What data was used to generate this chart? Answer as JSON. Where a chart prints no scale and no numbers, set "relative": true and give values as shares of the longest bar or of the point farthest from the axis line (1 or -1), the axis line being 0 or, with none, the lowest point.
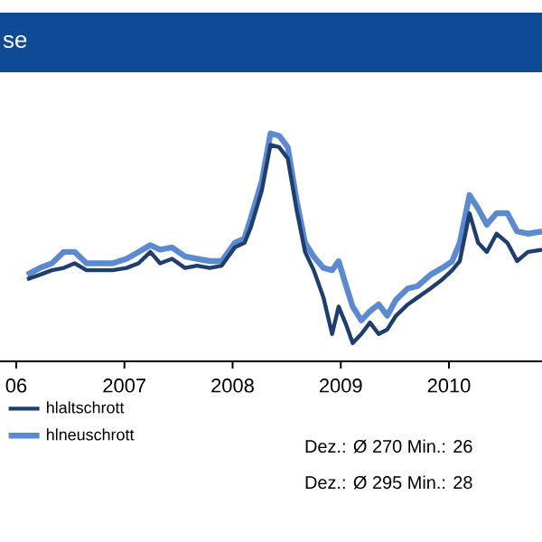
{
  "chart_data": {
    "type": "line",
    "title": "se",
    "relative": true,
    "xlim": [
      2005.85,
      2010.86
    ],
    "xticks": [
      {
        "value": 2006,
        "label": "06"
      },
      2007,
      2008,
      2009,
      2010
    ],
    "legend": "bottom left",
    "line_style": "solid",
    "marker": "none",
    "series": [
      {
        "name": "hlneuschrott",
        "color": "#5b8ad0",
        "x": [
          2006.1,
          2006.22,
          2006.33,
          2006.44,
          2006.54,
          2006.65,
          2006.76,
          2006.89,
          2007.02,
          2007.13,
          2007.24,
          2007.33,
          2007.44,
          2007.56,
          2007.67,
          2007.79,
          2007.9,
          2008.02,
          2008.11,
          2008.17,
          2008.27,
          2008.35,
          2008.43,
          2008.51,
          2008.59,
          2008.67,
          2008.75,
          2008.84,
          2008.92,
          2008.98,
          2009.05,
          2009.11,
          2009.19,
          2009.27,
          2009.35,
          2009.43,
          2009.51,
          2009.62,
          2009.71,
          2009.83,
          2009.94,
          2010.03,
          2010.1,
          2010.19,
          2010.27,
          2010.35,
          2010.44,
          2010.54,
          2010.63,
          2010.73,
          2010.86
        ],
        "values": [
          0.38,
          0.41,
          0.43,
          0.48,
          0.48,
          0.43,
          0.43,
          0.43,
          0.45,
          0.48,
          0.51,
          0.49,
          0.5,
          0.46,
          0.45,
          0.44,
          0.44,
          0.52,
          0.54,
          0.63,
          0.79,
          1.0,
          0.99,
          0.94,
          0.71,
          0.52,
          0.46,
          0.41,
          0.4,
          0.44,
          0.33,
          0.24,
          0.18,
          0.22,
          0.25,
          0.2,
          0.27,
          0.32,
          0.33,
          0.38,
          0.41,
          0.44,
          0.52,
          0.73,
          0.67,
          0.6,
          0.65,
          0.65,
          0.57,
          0.56,
          0.57
        ]
      },
      {
        "name": "hlaltschrott",
        "color": "#1f3d6e",
        "x": [
          2006.1,
          2006.22,
          2006.33,
          2006.44,
          2006.54,
          2006.65,
          2006.76,
          2006.89,
          2007.02,
          2007.13,
          2007.24,
          2007.33,
          2007.44,
          2007.56,
          2007.67,
          2007.79,
          2007.9,
          2008.02,
          2008.11,
          2008.17,
          2008.27,
          2008.35,
          2008.43,
          2008.51,
          2008.59,
          2008.67,
          2008.75,
          2008.84,
          2008.92,
          2008.98,
          2009.05,
          2009.11,
          2009.19,
          2009.27,
          2009.35,
          2009.43,
          2009.51,
          2009.62,
          2009.71,
          2009.83,
          2009.94,
          2010.03,
          2010.1,
          2010.19,
          2010.27,
          2010.35,
          2010.44,
          2010.54,
          2010.63,
          2010.73,
          2010.86
        ],
        "values": [
          0.36,
          0.38,
          0.4,
          0.41,
          0.43,
          0.4,
          0.4,
          0.4,
          0.41,
          0.43,
          0.48,
          0.43,
          0.45,
          0.41,
          0.42,
          0.41,
          0.42,
          0.5,
          0.52,
          0.59,
          0.75,
          0.95,
          0.94,
          0.89,
          0.67,
          0.48,
          0.4,
          0.28,
          0.12,
          0.24,
          0.16,
          0.08,
          0.12,
          0.17,
          0.12,
          0.14,
          0.2,
          0.25,
          0.28,
          0.32,
          0.36,
          0.4,
          0.44,
          0.65,
          0.52,
          0.48,
          0.56,
          0.52,
          0.44,
          0.48,
          0.49
        ]
      }
    ],
    "annotations": [
      "Dez.: Ø 270  Min.: 26",
      "Dez.: Ø 295  Min.: 28"
    ]
  }
}
